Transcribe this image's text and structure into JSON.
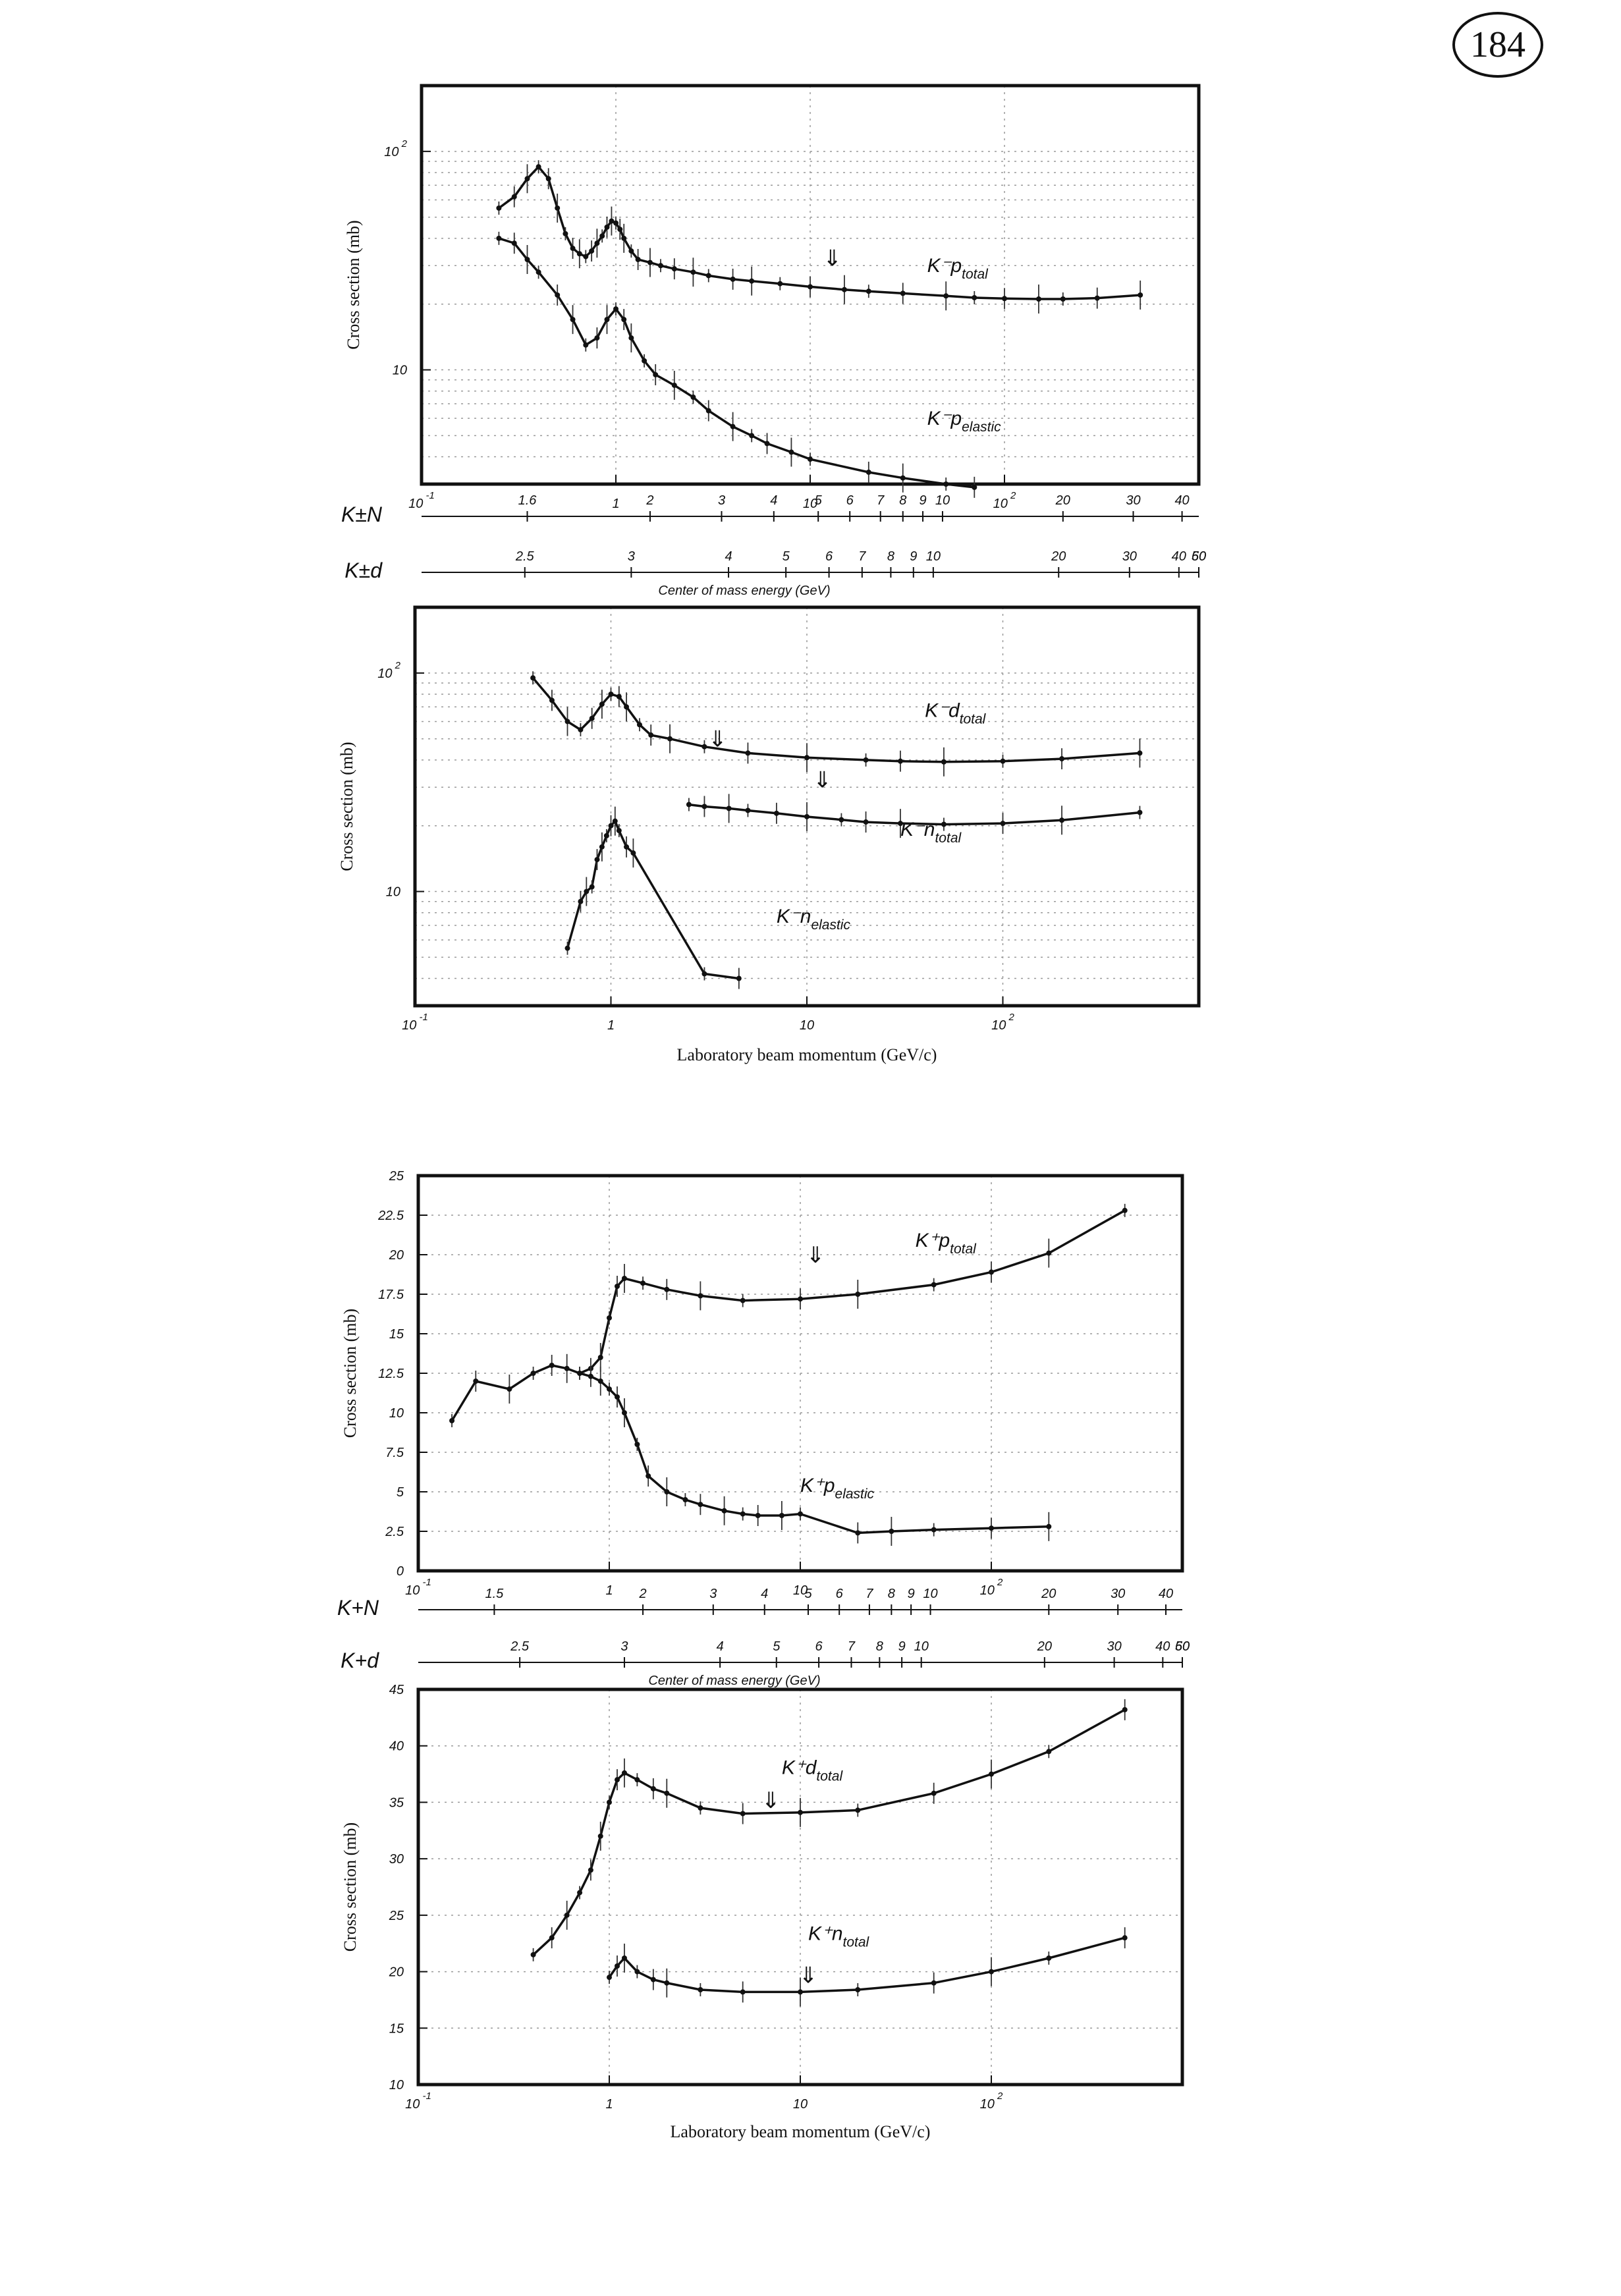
{
  "page": {
    "number": "184"
  },
  "chart_data": [
    {
      "id": "kminus-proton",
      "type": "scatter",
      "xscale": "log",
      "yscale": "log",
      "xlim": [
        0.1,
        1000
      ],
      "ylim": [
        3,
        200
      ],
      "grid": true,
      "ylabel": "Cross section (mb)",
      "xticks": [
        {
          "v": 0.1,
          "t": "10 -1"
        },
        {
          "v": 1,
          "t": "1"
        },
        {
          "v": 10,
          "t": "10"
        },
        {
          "v": 100,
          "t": "10 2"
        }
      ],
      "yticks": [
        {
          "v": 10,
          "t": "10"
        },
        {
          "v": 100,
          "t": "10 2"
        }
      ],
      "secondary_scales": [
        {
          "label": "K±N",
          "ticks": [
            {
              "v": 0.35,
              "t": "1.6"
            },
            {
              "v": 1.5,
              "t": "2"
            },
            {
              "v": 3.5,
              "t": "3"
            },
            {
              "v": 6.5,
              "t": "4"
            },
            {
              "v": 11,
              "t": "5"
            },
            {
              "v": 16,
              "t": "6"
            },
            {
              "v": 23,
              "t": "7"
            },
            {
              "v": 30,
              "t": "8"
            },
            {
              "v": 38,
              "t": "9"
            },
            {
              "v": 48,
              "t": "10"
            },
            {
              "v": 200,
              "t": "20"
            },
            {
              "v": 460,
              "t": "30"
            },
            {
              "v": 820,
              "t": "40"
            }
          ]
        },
        {
          "label": "K±d",
          "ticks": [
            {
              "v": 0.34,
              "t": "2.5"
            },
            {
              "v": 1.2,
              "t": "3"
            },
            {
              "v": 3.8,
              "t": "4"
            },
            {
              "v": 7.5,
              "t": "5"
            },
            {
              "v": 12.5,
              "t": "6"
            },
            {
              "v": 18.5,
              "t": "7"
            },
            {
              "v": 26,
              "t": "8"
            },
            {
              "v": 34,
              "t": "9"
            },
            {
              "v": 43,
              "t": "10"
            },
            {
              "v": 190,
              "t": "20"
            },
            {
              "v": 440,
              "t": "30"
            },
            {
              "v": 790,
              "t": "40"
            },
            {
              "v": 1240,
              "t": "50"
            },
            {
              "v": 1790,
              "t": "60"
            }
          ],
          "title": "Center of mass energy (GeV)"
        }
      ],
      "series": [
        {
          "name": "K⁻p total",
          "label_sub": "total",
          "label_at": [
            40,
            28
          ],
          "arrow_at": [
            13,
            30
          ],
          "x": [
            0.25,
            0.3,
            0.35,
            0.4,
            0.45,
            0.5,
            0.55,
            0.6,
            0.65,
            0.7,
            0.75,
            0.8,
            0.85,
            0.9,
            0.95,
            1.0,
            1.05,
            1.1,
            1.2,
            1.3,
            1.5,
            1.7,
            2.0,
            2.5,
            3,
            4,
            5,
            7,
            10,
            15,
            20,
            30,
            50,
            70,
            100,
            150,
            200,
            300,
            500
          ],
          "y": [
            55,
            62,
            75,
            85,
            75,
            55,
            42,
            36,
            34,
            33,
            35,
            38,
            41,
            45,
            48,
            47,
            44,
            40,
            35,
            32,
            31,
            30,
            29,
            28,
            27,
            26,
            25.5,
            24.8,
            24,
            23.3,
            22.9,
            22.4,
            21.8,
            21.4,
            21.2,
            21.1,
            21.1,
            21.3,
            22.0
          ]
        },
        {
          "name": "K⁻p elastic",
          "label_sub": "elastic",
          "label_at": [
            40,
            5.6
          ],
          "x": [
            0.25,
            0.3,
            0.35,
            0.4,
            0.5,
            0.6,
            0.7,
            0.8,
            0.9,
            1.0,
            1.1,
            1.2,
            1.4,
            1.6,
            2.0,
            2.5,
            3,
            4,
            5,
            6,
            8,
            10,
            20,
            30,
            50,
            70
          ],
          "y": [
            40,
            38,
            32,
            28,
            22,
            17,
            13,
            14,
            17,
            19,
            17,
            14,
            11,
            9.5,
            8.5,
            7.5,
            6.5,
            5.5,
            5.0,
            4.6,
            4.2,
            3.9,
            3.4,
            3.2,
            3.0,
            2.9
          ]
        }
      ]
    },
    {
      "id": "kminus-deuteron",
      "type": "scatter",
      "xscale": "log",
      "yscale": "log",
      "xlim": [
        0.1,
        1000
      ],
      "ylim": [
        3,
        200
      ],
      "grid": true,
      "ylabel": "Cross section (mb)",
      "xlabel": "Laboratory beam momentum (GeV/c)",
      "xticks": [
        {
          "v": 0.1,
          "t": "10 -1"
        },
        {
          "v": 1,
          "t": "1"
        },
        {
          "v": 10,
          "t": "10"
        },
        {
          "v": 100,
          "t": "10 2"
        }
      ],
      "yticks": [
        {
          "v": 10,
          "t": "10"
        },
        {
          "v": 100,
          "t": "10 2"
        }
      ],
      "series": [
        {
          "name": "K⁻d total",
          "label_sub": "total",
          "label_at": [
            40,
            63
          ],
          "arrow_at": [
            3.5,
            46
          ],
          "x": [
            0.4,
            0.5,
            0.6,
            0.7,
            0.8,
            0.9,
            1.0,
            1.1,
            1.2,
            1.4,
            1.6,
            2.0,
            3,
            5,
            10,
            20,
            30,
            50,
            100,
            200,
            500
          ],
          "y": [
            95,
            75,
            60,
            55,
            62,
            72,
            80,
            78,
            70,
            58,
            52,
            50,
            46,
            43,
            41,
            40,
            39.5,
            39.2,
            39.5,
            40.5,
            43
          ]
        },
        {
          "name": "K⁻n total",
          "label_sub": "total",
          "label_at": [
            30,
            18
          ],
          "arrow_at": [
            12,
            30
          ],
          "x": [
            2.5,
            3,
            4,
            5,
            7,
            10,
            15,
            20,
            30,
            50,
            100,
            200,
            500
          ],
          "y": [
            25,
            24.5,
            24,
            23.5,
            22.8,
            22,
            21.3,
            20.8,
            20.5,
            20.3,
            20.5,
            21.2,
            23
          ]
        },
        {
          "name": "K⁻n elastic",
          "label_sub": "elastic",
          "label_at": [
            7,
            7.2
          ],
          "x": [
            0.6,
            0.7,
            0.75,
            0.8,
            0.85,
            0.9,
            0.95,
            1.0,
            1.05,
            1.1,
            1.2,
            1.3,
            3,
            4.5
          ],
          "y": [
            5.5,
            9,
            10,
            10.5,
            14,
            16,
            18,
            20,
            21,
            19,
            16,
            15,
            4.2,
            4.0
          ]
        }
      ]
    },
    {
      "id": "kplus-proton",
      "type": "scatter",
      "xscale": "log",
      "yscale": "linear",
      "xlim": [
        0.1,
        1000
      ],
      "ylim": [
        0,
        25
      ],
      "grid": true,
      "ylabel": "Cross section (mb)",
      "xticks": [
        {
          "v": 0.1,
          "t": "10 -1"
        },
        {
          "v": 1,
          "t": "1"
        },
        {
          "v": 10,
          "t": "10"
        },
        {
          "v": 100,
          "t": "10 2"
        }
      ],
      "yticks": [
        {
          "v": 0,
          "t": "0"
        },
        {
          "v": 2.5,
          "t": "2.5"
        },
        {
          "v": 5,
          "t": "5"
        },
        {
          "v": 7.5,
          "t": "7.5"
        },
        {
          "v": 10,
          "t": "10"
        },
        {
          "v": 12.5,
          "t": "12.5"
        },
        {
          "v": 15,
          "t": "15"
        },
        {
          "v": 17.5,
          "t": "17.5"
        },
        {
          "v": 20,
          "t": "20"
        },
        {
          "v": 22.5,
          "t": "22.5"
        },
        {
          "v": 25,
          "t": "25"
        }
      ],
      "secondary_scales": [
        {
          "label": "K+N",
          "ticks": [
            {
              "v": 0.25,
              "t": "1.5"
            },
            {
              "v": 1.5,
              "t": "2"
            },
            {
              "v": 3.5,
              "t": "3"
            },
            {
              "v": 6.5,
              "t": "4"
            },
            {
              "v": 11,
              "t": "5"
            },
            {
              "v": 16,
              "t": "6"
            },
            {
              "v": 23,
              "t": "7"
            },
            {
              "v": 30,
              "t": "8"
            },
            {
              "v": 38,
              "t": "9"
            },
            {
              "v": 48,
              "t": "10"
            },
            {
              "v": 200,
              "t": "20"
            },
            {
              "v": 460,
              "t": "30"
            },
            {
              "v": 820,
              "t": "40"
            }
          ]
        },
        {
          "label": "K+d",
          "ticks": [
            {
              "v": 0.34,
              "t": "2.5"
            },
            {
              "v": 1.2,
              "t": "3"
            },
            {
              "v": 3.8,
              "t": "4"
            },
            {
              "v": 7.5,
              "t": "5"
            },
            {
              "v": 12.5,
              "t": "6"
            },
            {
              "v": 18.5,
              "t": "7"
            },
            {
              "v": 26,
              "t": "8"
            },
            {
              "v": 34,
              "t": "9"
            },
            {
              "v": 43,
              "t": "10"
            },
            {
              "v": 190,
              "t": "20"
            },
            {
              "v": 440,
              "t": "30"
            },
            {
              "v": 790,
              "t": "40"
            },
            {
              "v": 1240,
              "t": "50"
            },
            {
              "v": 1790,
              "t": "60"
            }
          ],
          "title": "Center of mass energy (GeV)"
        }
      ],
      "series": [
        {
          "name": "K⁺p total",
          "label_sub": "total",
          "label_at": [
            40,
            20.5
          ],
          "arrow_at": [
            12,
            19.5
          ],
          "x": [
            0.15,
            0.2,
            0.3,
            0.4,
            0.5,
            0.6,
            0.7,
            0.8,
            0.9,
            1.0,
            1.1,
            1.2,
            1.5,
            2.0,
            3,
            5,
            10,
            20,
            50,
            100,
            200,
            500
          ],
          "y": [
            9.5,
            12,
            11.5,
            12.5,
            13,
            12.8,
            12.5,
            12.8,
            13.5,
            16,
            18,
            18.5,
            18.2,
            17.8,
            17.4,
            17.1,
            17.2,
            17.5,
            18.1,
            18.9,
            20.1,
            22.8
          ]
        },
        {
          "name": "K⁺p elastic",
          "label_sub": "elastic",
          "label_at": [
            10,
            5.0
          ],
          "x": [
            0.7,
            0.8,
            0.9,
            1.0,
            1.1,
            1.2,
            1.4,
            1.6,
            2.0,
            2.5,
            3,
            4,
            5,
            6,
            8,
            10,
            20,
            30,
            50,
            100,
            200
          ],
          "y": [
            12.5,
            12.3,
            12,
            11.5,
            11,
            10,
            8,
            6,
            5,
            4.5,
            4.2,
            3.8,
            3.6,
            3.5,
            3.5,
            3.6,
            2.4,
            2.5,
            2.6,
            2.7,
            2.8
          ]
        }
      ]
    },
    {
      "id": "kplus-deuteron",
      "type": "scatter",
      "xscale": "log",
      "yscale": "linear",
      "xlim": [
        0.1,
        1000
      ],
      "ylim": [
        10,
        45
      ],
      "grid": true,
      "ylabel": "Cross section (mb)",
      "xlabel": "Laboratory beam momentum (GeV/c)",
      "xticks": [
        {
          "v": 0.1,
          "t": "10 -1"
        },
        {
          "v": 1,
          "t": "1"
        },
        {
          "v": 10,
          "t": "10"
        },
        {
          "v": 100,
          "t": "10 2"
        }
      ],
      "yticks": [
        {
          "v": 10,
          "t": "10"
        },
        {
          "v": 15,
          "t": "15"
        },
        {
          "v": 20,
          "t": "20"
        },
        {
          "v": 25,
          "t": "25"
        },
        {
          "v": 30,
          "t": "30"
        },
        {
          "v": 35,
          "t": "35"
        },
        {
          "v": 40,
          "t": "40"
        },
        {
          "v": 45,
          "t": "45"
        }
      ],
      "series": [
        {
          "name": "K⁺d total",
          "label_sub": "total",
          "label_at": [
            8,
            37.5
          ],
          "arrow_at": [
            7,
            34.5
          ],
          "x": [
            0.4,
            0.5,
            0.6,
            0.7,
            0.8,
            0.9,
            1.0,
            1.1,
            1.2,
            1.4,
            1.7,
            2.0,
            3,
            5,
            10,
            20,
            50,
            100,
            200,
            500
          ],
          "y": [
            21.5,
            23,
            25,
            27,
            29,
            32,
            35,
            37,
            37.6,
            37,
            36.2,
            35.8,
            34.5,
            34,
            34.1,
            34.3,
            35.8,
            37.5,
            39.5,
            43.2
          ]
        },
        {
          "name": "K⁺n total",
          "label_sub": "total",
          "label_at": [
            11,
            22.8
          ],
          "arrow_at": [
            11,
            19
          ],
          "x": [
            1.0,
            1.1,
            1.2,
            1.4,
            1.7,
            2.0,
            3,
            5,
            10,
            20,
            50,
            100,
            200,
            500
          ],
          "y": [
            19.5,
            20.5,
            21.2,
            20,
            19.3,
            19,
            18.4,
            18.2,
            18.2,
            18.4,
            19,
            20,
            21.2,
            23
          ]
        }
      ]
    }
  ]
}
